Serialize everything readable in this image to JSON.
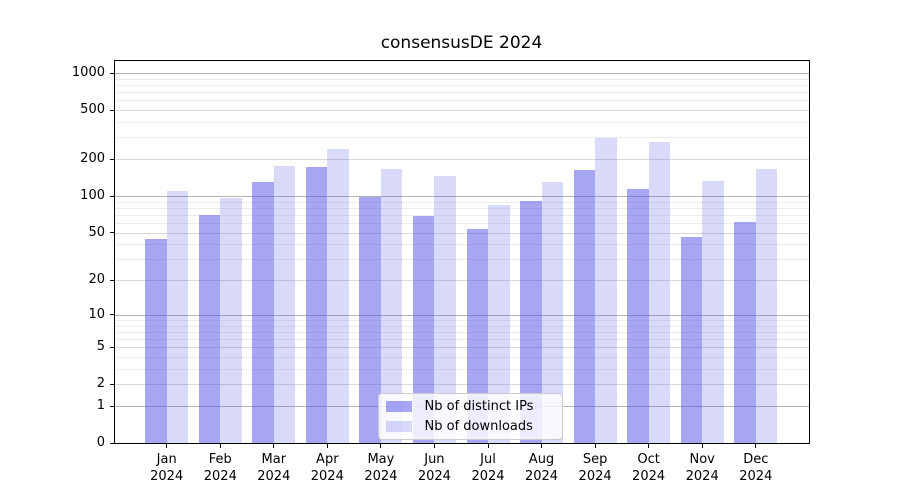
{
  "chart_data": {
    "type": "bar",
    "title": "consensusDE 2024",
    "categories": [
      "Jan",
      "Feb",
      "Mar",
      "Apr",
      "May",
      "Jun",
      "Jul",
      "Aug",
      "Sep",
      "Oct",
      "Nov",
      "Dec"
    ],
    "x_year": "2024",
    "series": [
      {
        "name": "Nb of distinct IPs",
        "key": "distinct-ips",
        "color": "rgba(80,80,232,0.51)",
        "values": [
          44,
          70,
          129,
          171,
          98,
          68,
          54,
          91,
          164,
          114,
          46,
          61
        ]
      },
      {
        "name": "Nb of downloads",
        "key": "downloads",
        "color": "rgba(80,80,232,0.22)",
        "values": [
          109,
          96,
          176,
          240,
          166,
          145,
          84,
          130,
          296,
          276,
          132,
          166
        ]
      }
    ],
    "y_scale": "log10(1+y)",
    "y_ticks": [
      0,
      1,
      2,
      5,
      10,
      20,
      50,
      100,
      200,
      500,
      1000
    ],
    "y_major_gridlines": [
      1,
      10,
      100,
      1000
    ],
    "y_labeled_minor_gridlines": [
      2,
      5,
      20,
      50,
      200,
      500
    ],
    "ylim": [
      0,
      1300
    ],
    "grid": true,
    "legend_position": "lower center",
    "xlabel": "",
    "ylabel": ""
  },
  "colors": {
    "major_grid": "#b4b4b4",
    "labeled_minor_grid": "#d9d9d9",
    "minor_grid": "#ececec",
    "spine": "#000000",
    "text": "#000000",
    "legend_border": "#cccccc",
    "legend_background": "rgba(255,255,255,0.8)"
  }
}
